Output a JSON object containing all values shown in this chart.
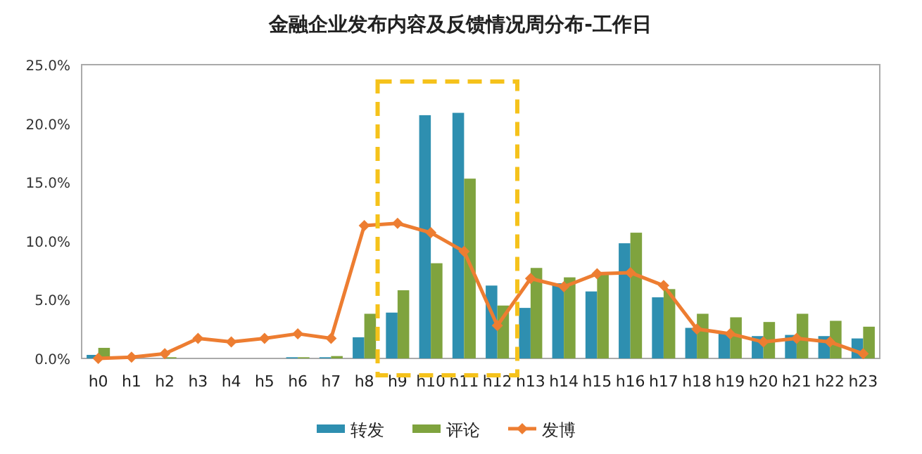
{
  "chart_data": {
    "type": "bar",
    "title": "金融企业发布内容及反馈情况周分布-工作日",
    "categories": [
      "h0",
      "h1",
      "h2",
      "h3",
      "h4",
      "h5",
      "h6",
      "h7",
      "h8",
      "h9",
      "h10",
      "h11",
      "h12",
      "h13",
      "h14",
      "h15",
      "h16",
      "h17",
      "h18",
      "h19",
      "h20",
      "h21",
      "h22",
      "h23"
    ],
    "series": [
      {
        "name": "转发",
        "color": "#2e8fb0",
        "values": [
          0.3,
          0,
          0,
          0,
          0,
          0,
          0.1,
          0.1,
          1.8,
          3.9,
          20.7,
          20.9,
          6.2,
          4.3,
          6.4,
          5.7,
          9.8,
          5.2,
          2.6,
          2.2,
          1.9,
          2.0,
          1.9,
          1.7
        ]
      },
      {
        "name": "评论",
        "color": "#7fa33e",
        "values": [
          0.9,
          0,
          0.1,
          0,
          0,
          0,
          0.1,
          0.2,
          3.8,
          5.8,
          8.1,
          15.3,
          4.5,
          7.7,
          6.9,
          7.2,
          10.7,
          5.9,
          3.8,
          3.5,
          3.1,
          3.8,
          3.2,
          2.7
        ]
      },
      {
        "name": "发博",
        "type": "line",
        "color": "#ed7d31",
        "marker": "diamond",
        "line_style": "solid",
        "values": [
          0,
          0.1,
          0.4,
          1.7,
          1.4,
          1.7,
          2.1,
          1.7,
          11.3,
          11.5,
          10.7,
          9.1,
          2.8,
          6.8,
          6.1,
          7.2,
          7.3,
          6.2,
          2.5,
          2.1,
          1.4,
          1.7,
          1.4,
          0.4
        ]
      }
    ],
    "ylim": [
      0,
      25
    ],
    "yticks": [
      {
        "value": 0,
        "label": "0.0%"
      },
      {
        "value": 5,
        "label": "5.0%"
      },
      {
        "value": 10,
        "label": "10.0%"
      },
      {
        "value": 15,
        "label": "15.0%"
      },
      {
        "value": 20,
        "label": "20.0%"
      },
      {
        "value": 25,
        "label": "25.0%"
      }
    ],
    "grid": false,
    "legend": "bottom"
  }
}
